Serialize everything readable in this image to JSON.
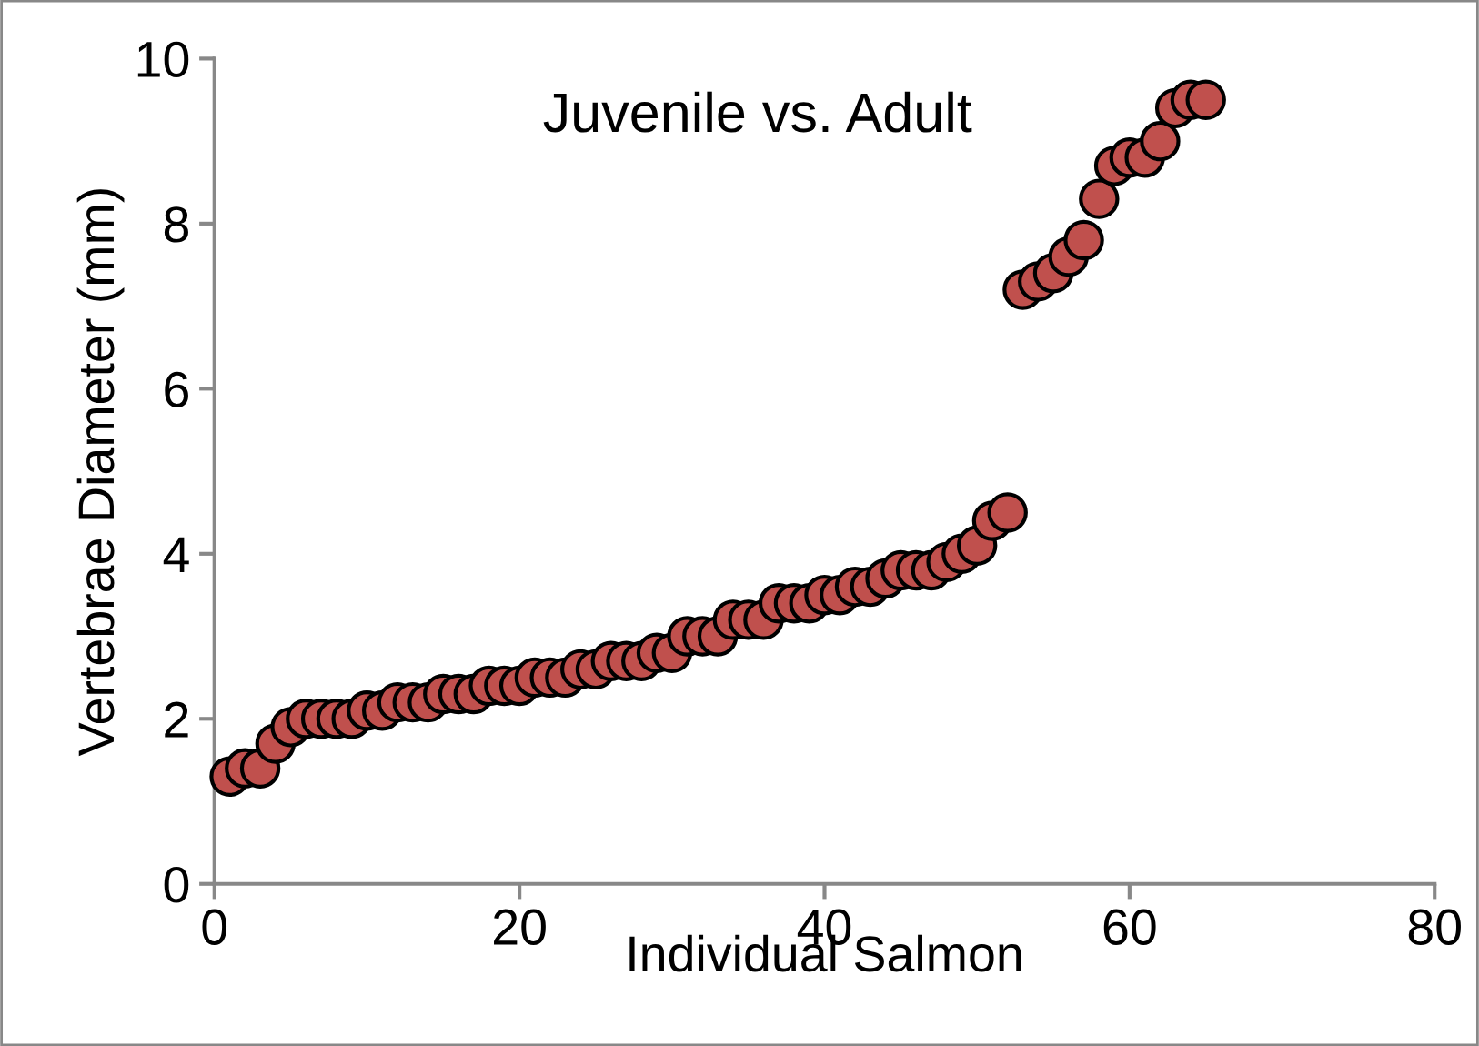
{
  "chart_data": {
    "type": "scatter",
    "title": "Juvenile vs. Adult",
    "xlabel": "Individual Salmon",
    "ylabel": "Vertebrae Diameter (mm)",
    "x": [
      1,
      2,
      3,
      4,
      5,
      6,
      7,
      8,
      9,
      10,
      11,
      12,
      13,
      14,
      15,
      16,
      17,
      18,
      19,
      20,
      21,
      22,
      23,
      24,
      25,
      26,
      27,
      28,
      29,
      30,
      31,
      32,
      33,
      34,
      35,
      36,
      37,
      38,
      39,
      40,
      41,
      42,
      43,
      44,
      45,
      46,
      47,
      48,
      49,
      50,
      51,
      52,
      53,
      54,
      55,
      56,
      57,
      58,
      59,
      60,
      61,
      62,
      63,
      64,
      65
    ],
    "series": [
      {
        "color": "#c0504d",
        "values": [
          1.3,
          1.4,
          1.4,
          1.7,
          1.9,
          2.0,
          2.0,
          2.0,
          2.0,
          2.1,
          2.1,
          2.2,
          2.2,
          2.2,
          2.3,
          2.3,
          2.3,
          2.4,
          2.4,
          2.4,
          2.5,
          2.5,
          2.5,
          2.6,
          2.6,
          2.7,
          2.7,
          2.7,
          2.8,
          2.8,
          3.0,
          3.0,
          3.0,
          3.2,
          3.2,
          3.2,
          3.4,
          3.4,
          3.4,
          3.5,
          3.5,
          3.6,
          3.6,
          3.7,
          3.8,
          3.8,
          3.8,
          3.9,
          4.0,
          4.1,
          4.4,
          4.5,
          7.2,
          7.3,
          7.4,
          7.6,
          7.8,
          8.3,
          8.7,
          8.8,
          8.8,
          9.0,
          9.4,
          9.5,
          9.5
        ]
      }
    ],
    "xlim": [
      0,
      80
    ],
    "xticks": [
      0,
      20,
      40,
      60,
      80
    ],
    "ylim": [
      0,
      10
    ],
    "yticks": [
      0,
      2,
      4,
      6,
      8,
      10
    ],
    "marker": "circle",
    "grid": false,
    "legend": false
  }
}
